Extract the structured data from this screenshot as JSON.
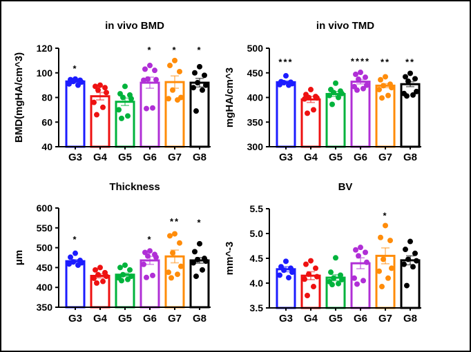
{
  "figure": {
    "background": "#ffffff",
    "border_color": "#000000",
    "layout": "2x2 grid of GraphPad-style scatter bar plots"
  },
  "chart_data": [
    {
      "id": "invivo-bmd",
      "type": "bar",
      "title": "in vivo BMD",
      "xlabel": "",
      "ylabel": "BMD(mgHA/cm^3)",
      "ylim": [
        40,
        120
      ],
      "yticks": [
        40,
        60,
        80,
        100,
        120
      ],
      "ytick_labels": [
        "40",
        "60",
        "80",
        "100",
        "120"
      ],
      "categories": [
        "G3",
        "G4",
        "G5",
        "G6",
        "G7",
        "G8"
      ],
      "colors": [
        "#1c1cff",
        "#ee1111",
        "#00b33c",
        "#b02fd6",
        "#ff8c0a",
        "#000000"
      ],
      "means": [
        93,
        81,
        76.5,
        92,
        92.5,
        92
      ],
      "sem": [
        1.2,
        3,
        3,
        4.5,
        5,
        3.5
      ],
      "significance": [
        "*",
        "",
        "",
        "*",
        "*",
        "*"
      ],
      "sig_y": [
        101,
        0,
        0,
        116,
        116,
        116
      ],
      "points": [
        [
          95,
          94.5,
          94,
          93,
          92.5,
          91,
          90
        ],
        [
          90,
          89,
          88,
          86,
          84,
          76,
          72,
          66
        ],
        [
          89,
          83,
          82,
          80,
          79,
          70,
          65,
          63
        ],
        [
          106,
          103,
          102,
          95,
          94.5,
          94,
          71.5,
          71
        ],
        [
          110,
          106,
          101,
          86,
          80,
          79,
          78
        ],
        [
          105,
          100,
          98,
          92,
          90,
          88,
          86,
          69
        ]
      ],
      "grid": false,
      "legend": null
    },
    {
      "id": "invivo-tmd",
      "type": "bar",
      "title": "in vivo TMD",
      "xlabel": "",
      "ylabel": "mgHA/cm^3",
      "ylim": [
        300,
        500
      ],
      "yticks": [
        300,
        350,
        400,
        450,
        500
      ],
      "ytick_labels": [
        "300",
        "350",
        "400",
        "450",
        "500"
      ],
      "categories": [
        "G3",
        "G4",
        "G5",
        "G6",
        "G7",
        "G8"
      ],
      "colors": [
        "#1c1cff",
        "#ee1111",
        "#00b33c",
        "#b02fd6",
        "#ff8c0a",
        "#000000"
      ],
      "means": [
        431,
        396,
        407,
        432,
        424,
        427
      ],
      "sem": [
        2.5,
        6,
        5,
        4.5,
        4,
        5
      ],
      "significance": [
        "***",
        "",
        "",
        "****",
        "**",
        "**"
      ],
      "sig_y": [
        466,
        0,
        0,
        467,
        466,
        466
      ],
      "points": [
        [
          444,
          432,
          431,
          430,
          428,
          426,
          425
        ],
        [
          416,
          406,
          402,
          400,
          399,
          397,
          375,
          368
        ],
        [
          429,
          416,
          413,
          410,
          408,
          404,
          400,
          386
        ],
        [
          451,
          447,
          441,
          437,
          425,
          422,
          418,
          415
        ],
        [
          442,
          436,
          427,
          424,
          420,
          416,
          404,
          399
        ],
        [
          449,
          442,
          438,
          433,
          412,
          408,
          405,
          403
        ]
      ],
      "grid": false,
      "legend": null
    },
    {
      "id": "thickness",
      "type": "bar",
      "title": "Thickness",
      "xlabel": "",
      "ylabel": "μm",
      "ylim": [
        350,
        600
      ],
      "yticks": [
        350,
        400,
        450,
        500,
        550,
        600
      ],
      "ytick_labels": [
        "350",
        "400",
        "450",
        "500",
        "550",
        "600"
      ],
      "categories": [
        "G3",
        "G4",
        "G5",
        "G6",
        "G7",
        "G8"
      ],
      "colors": [
        "#1c1cff",
        "#ee1111",
        "#00b33c",
        "#b02fd6",
        "#ff8c0a",
        "#000000"
      ],
      "means": [
        466,
        429,
        432,
        468,
        478,
        468
      ],
      "sem": [
        4,
        5,
        4,
        10,
        16,
        7
      ],
      "significance": [
        "*",
        "",
        "",
        "*",
        "**",
        "*"
      ],
      "sig_y": [
        513,
        0,
        0,
        513,
        558,
        556
      ],
      "points": [
        [
          486,
          476,
          468,
          464,
          462,
          459,
          456
        ],
        [
          450,
          444,
          437,
          432,
          428,
          423,
          415,
          411
        ],
        [
          456,
          450,
          444,
          432,
          428,
          424,
          420,
          417
        ],
        [
          492,
          488,
          483,
          479,
          476,
          458,
          430,
          425
        ],
        [
          535,
          530,
          512,
          487,
          453,
          438,
          433,
          424
        ],
        [
          510,
          490,
          473,
          470,
          466,
          462,
          444,
          428
        ]
      ],
      "grid": false,
      "legend": null
    },
    {
      "id": "bv",
      "type": "bar",
      "title": "BV",
      "xlabel": "",
      "ylabel": "mm^-3",
      "ylim": [
        3.5,
        5.5
      ],
      "yticks": [
        3.5,
        4.0,
        4.5,
        5.0,
        5.5
      ],
      "ytick_labels": [
        "3.5",
        "4.0",
        "4.5",
        "5.0",
        "5.5"
      ],
      "categories": [
        "G3",
        "G4",
        "G5",
        "G6",
        "G7",
        "G8"
      ],
      "colors": [
        "#1c1cff",
        "#ee1111",
        "#00b33c",
        "#b02fd6",
        "#ff8c0a",
        "#000000"
      ],
      "means": [
        4.28,
        4.15,
        4.11,
        4.4,
        4.55,
        4.46
      ],
      "sem": [
        0.05,
        0.08,
        0.06,
        0.11,
        0.16,
        0.09
      ],
      "significance": [
        "",
        "",
        "",
        "",
        "*",
        ""
      ],
      "sig_y": [
        0,
        0,
        0,
        0,
        5.3,
        0
      ],
      "points": [
        [
          4.44,
          4.33,
          4.3,
          4.26,
          4.22,
          4.16,
          4.11
        ],
        [
          4.45,
          4.38,
          4.3,
          4.18,
          4.13,
          4.08,
          3.93,
          3.75
        ],
        [
          4.51,
          4.22,
          4.16,
          4.1,
          4.07,
          4.03,
          3.99,
          3.97
        ],
        [
          4.72,
          4.67,
          4.62,
          4.55,
          4.42,
          4.1,
          4.05,
          3.98
        ],
        [
          5.16,
          4.92,
          4.86,
          4.48,
          4.3,
          4.24,
          4.1,
          3.93
        ],
        [
          4.84,
          4.68,
          4.6,
          4.48,
          4.45,
          4.38,
          4.33,
          3.95
        ]
      ],
      "grid": false,
      "legend": null
    }
  ]
}
